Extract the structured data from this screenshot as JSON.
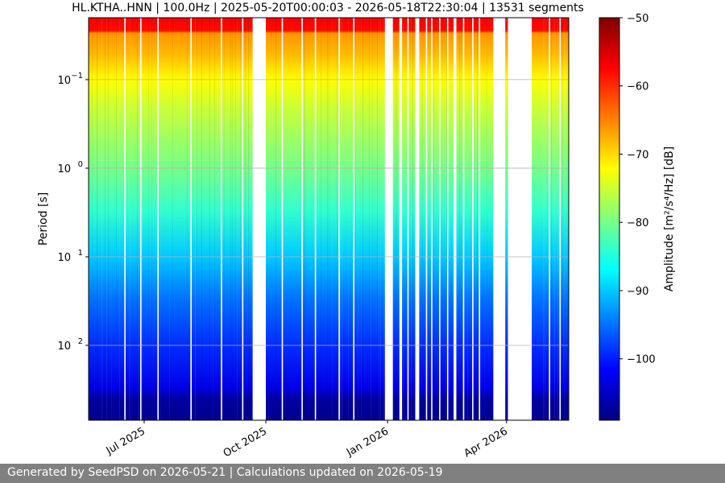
{
  "chart_data": {
    "type": "heatmap",
    "title": "HL.KTHA..HNN | 100.0Hz | 2025-05-20T00:00:03 - 2026-05-18T22:30:04 | 13531 segments",
    "ylabel": "Period [s]",
    "y_scale": "log",
    "y_inverted": true,
    "y_lim": [
      0.02,
      700
    ],
    "y_ticks": [
      {
        "value": 0.1,
        "label": "10",
        "exp": "−1"
      },
      {
        "value": 1,
        "label": "10",
        "exp": "0"
      },
      {
        "value": 10,
        "label": "10",
        "exp": "1"
      },
      {
        "value": 100,
        "label": "10",
        "exp": "2"
      }
    ],
    "x_range": [
      "2025-05-20",
      "2026-05-18"
    ],
    "x_ticks": [
      {
        "date": "2025-07-01",
        "label": "Jul 2025"
      },
      {
        "date": "2025-10-01",
        "label": "Oct 2025"
      },
      {
        "date": "2026-01-01",
        "label": "Jan 2026"
      },
      {
        "date": "2026-04-01",
        "label": "Apr 2026"
      }
    ],
    "grid": true,
    "colormap": "jet",
    "colormap_stops": [
      "#00007f",
      "#0000ff",
      "#007fff",
      "#00ffff",
      "#7fff7f",
      "#ffff00",
      "#ff7f00",
      "#ff0000",
      "#7f0000"
    ],
    "colorbar": {
      "label": "Amplitude [m²/s⁴/Hz] [dB]",
      "range": [
        -109,
        -50
      ],
      "ticks": [
        -50,
        -60,
        -70,
        -80,
        -90,
        -100
      ]
    },
    "amplitude_profile": [
      {
        "period": 0.02,
        "db": -57
      },
      {
        "period": 0.028,
        "db": -58
      },
      {
        "period": 0.03,
        "db": -66
      },
      {
        "period": 0.05,
        "db": -68
      },
      {
        "period": 0.1,
        "db": -72
      },
      {
        "period": 0.2,
        "db": -75
      },
      {
        "period": 0.5,
        "db": -78
      },
      {
        "period": 1,
        "db": -80
      },
      {
        "period": 3,
        "db": -84
      },
      {
        "period": 10,
        "db": -90
      },
      {
        "period": 30,
        "db": -95
      },
      {
        "period": 100,
        "db": -99
      },
      {
        "period": 300,
        "db": -103
      },
      {
        "period": 400,
        "db": -107
      },
      {
        "period": 700,
        "db": -108
      }
    ],
    "data_gaps": [
      [
        "2025-06-16",
        "2025-06-17"
      ],
      [
        "2025-06-28",
        "2025-06-29"
      ],
      [
        "2025-07-11",
        "2025-07-12"
      ],
      [
        "2025-08-05",
        "2025-08-06"
      ],
      [
        "2025-08-28",
        "2025-08-29"
      ],
      [
        "2025-09-13",
        "2025-09-14"
      ],
      [
        "2025-09-21",
        "2025-10-01"
      ],
      [
        "2025-10-13",
        "2025-10-14"
      ],
      [
        "2025-10-28",
        "2025-10-29"
      ],
      [
        "2025-11-07",
        "2025-11-08"
      ],
      [
        "2025-11-25",
        "2025-11-26"
      ],
      [
        "2025-12-06",
        "2025-12-07"
      ],
      [
        "2025-12-30",
        "2026-01-05"
      ],
      [
        "2026-01-10",
        "2026-01-12"
      ],
      [
        "2026-01-16",
        "2026-01-17"
      ],
      [
        "2026-01-22",
        "2026-01-25"
      ],
      [
        "2026-01-30",
        "2026-01-31"
      ],
      [
        "2026-02-03",
        "2026-02-04"
      ],
      [
        "2026-02-09",
        "2026-02-10"
      ],
      [
        "2026-02-15",
        "2026-02-16"
      ],
      [
        "2026-02-20",
        "2026-02-22"
      ],
      [
        "2026-02-27",
        "2026-02-28"
      ],
      [
        "2026-03-06",
        "2026-03-07"
      ],
      [
        "2026-03-11",
        "2026-03-12"
      ],
      [
        "2026-03-22",
        "2026-03-31"
      ],
      [
        "2026-04-02",
        "2026-04-20"
      ],
      [
        "2026-05-03",
        "2026-05-04"
      ],
      [
        "2026-05-11",
        "2026-05-12"
      ]
    ]
  },
  "footer": {
    "text": "Generated by SeedPSD on 2026-05-21 | Calculations updated on 2026-05-19"
  }
}
